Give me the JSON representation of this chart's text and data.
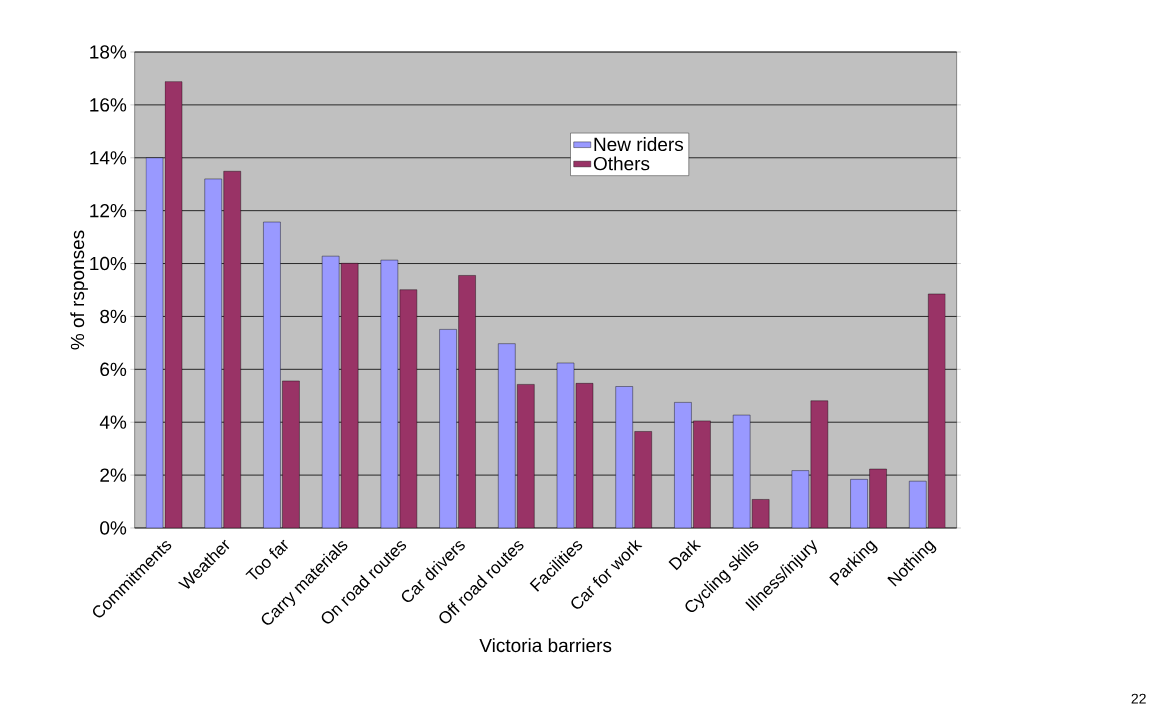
{
  "chart_data": {
    "type": "bar",
    "xlabel": "Victoria barriers",
    "ylabel": "% of rsponses",
    "categories": [
      "Commitments",
      "Weather",
      "Too far",
      "Carry materials",
      "On road routes",
      "Car drivers",
      "Off road routes",
      "Facilities",
      "Car for work",
      "Dark",
      "Cycling skills",
      "Illness/injury",
      "Parking",
      "Nothing"
    ],
    "series": [
      {
        "name": "New riders",
        "color": "#9999ff",
        "values": [
          14.0,
          13.2,
          11.57,
          10.28,
          10.13,
          7.51,
          6.97,
          6.24,
          5.35,
          4.75,
          4.27,
          2.17,
          1.84,
          1.77
        ]
      },
      {
        "name": "Others",
        "color": "#993366",
        "values": [
          16.88,
          13.49,
          5.56,
          10.01,
          9.01,
          9.55,
          5.43,
          5.47,
          3.65,
          4.05,
          1.08,
          4.81,
          2.23,
          8.85
        ]
      }
    ],
    "ylim": [
      0,
      18
    ],
    "yticks": [
      {
        "value": 0,
        "label": "0%"
      },
      {
        "value": 2,
        "label": "2%"
      },
      {
        "value": 4,
        "label": "4%"
      },
      {
        "value": 6,
        "label": "6%"
      },
      {
        "value": 8,
        "label": "8%"
      },
      {
        "value": 10,
        "label": "10%"
      },
      {
        "value": 12,
        "label": "12%"
      },
      {
        "value": 14,
        "label": "14%"
      },
      {
        "value": 16,
        "label": "16%"
      },
      {
        "value": 18,
        "label": "18%"
      }
    ],
    "grid": "y",
    "legend": "top",
    "annotations": [
      "22"
    ]
  }
}
